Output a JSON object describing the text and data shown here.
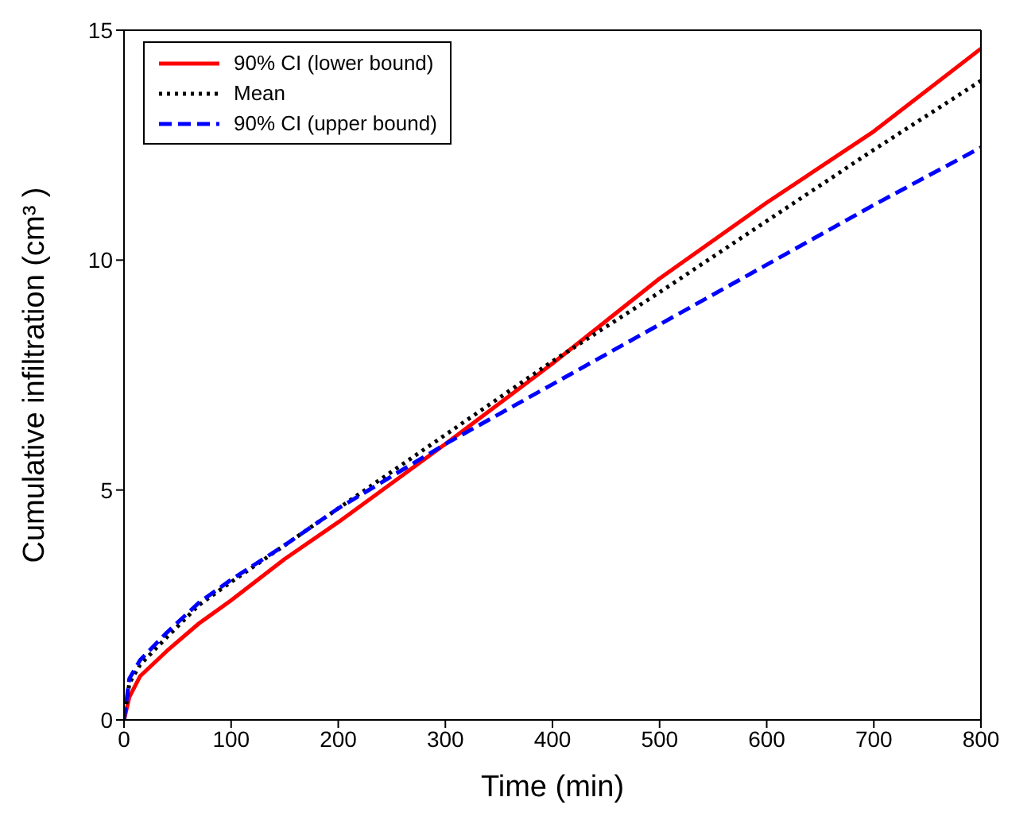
{
  "chart_data": {
    "type": "line",
    "xlabel": "Time (min)",
    "ylabel": "Cumulative infiltration (cm³ )",
    "x": [
      0,
      5,
      15,
      40,
      70,
      100,
      150,
      200,
      300,
      400,
      500,
      600,
      700,
      800
    ],
    "xlim": [
      0,
      800
    ],
    "xticks": [
      0,
      100,
      200,
      300,
      400,
      500,
      600,
      700,
      800
    ],
    "ylim": [
      0,
      15
    ],
    "yticks": [
      0,
      5,
      10,
      15
    ],
    "grid": false,
    "legend": "top left",
    "marker": "none",
    "series": [
      {
        "name": "90% CI (lower bound)",
        "color": "#ff0000",
        "line_style": "solid",
        "values": [
          0,
          0.5,
          0.95,
          1.5,
          2.1,
          2.6,
          3.5,
          4.3,
          6.0,
          7.75,
          9.6,
          11.25,
          12.8,
          14.6
        ]
      },
      {
        "name": "Mean",
        "color": "#000000",
        "line_style": "dotted",
        "values": [
          0,
          0.8,
          1.2,
          1.8,
          2.5,
          3.0,
          3.8,
          4.6,
          6.2,
          7.8,
          9.3,
          10.85,
          12.4,
          13.9
        ]
      },
      {
        "name": "90% CI (upper bound)",
        "color": "#0000ff",
        "line_style": "dashed",
        "values": [
          0,
          0.9,
          1.3,
          1.9,
          2.55,
          3.05,
          3.8,
          4.6,
          6.0,
          7.3,
          8.6,
          9.9,
          11.2,
          12.45
        ]
      }
    ]
  }
}
